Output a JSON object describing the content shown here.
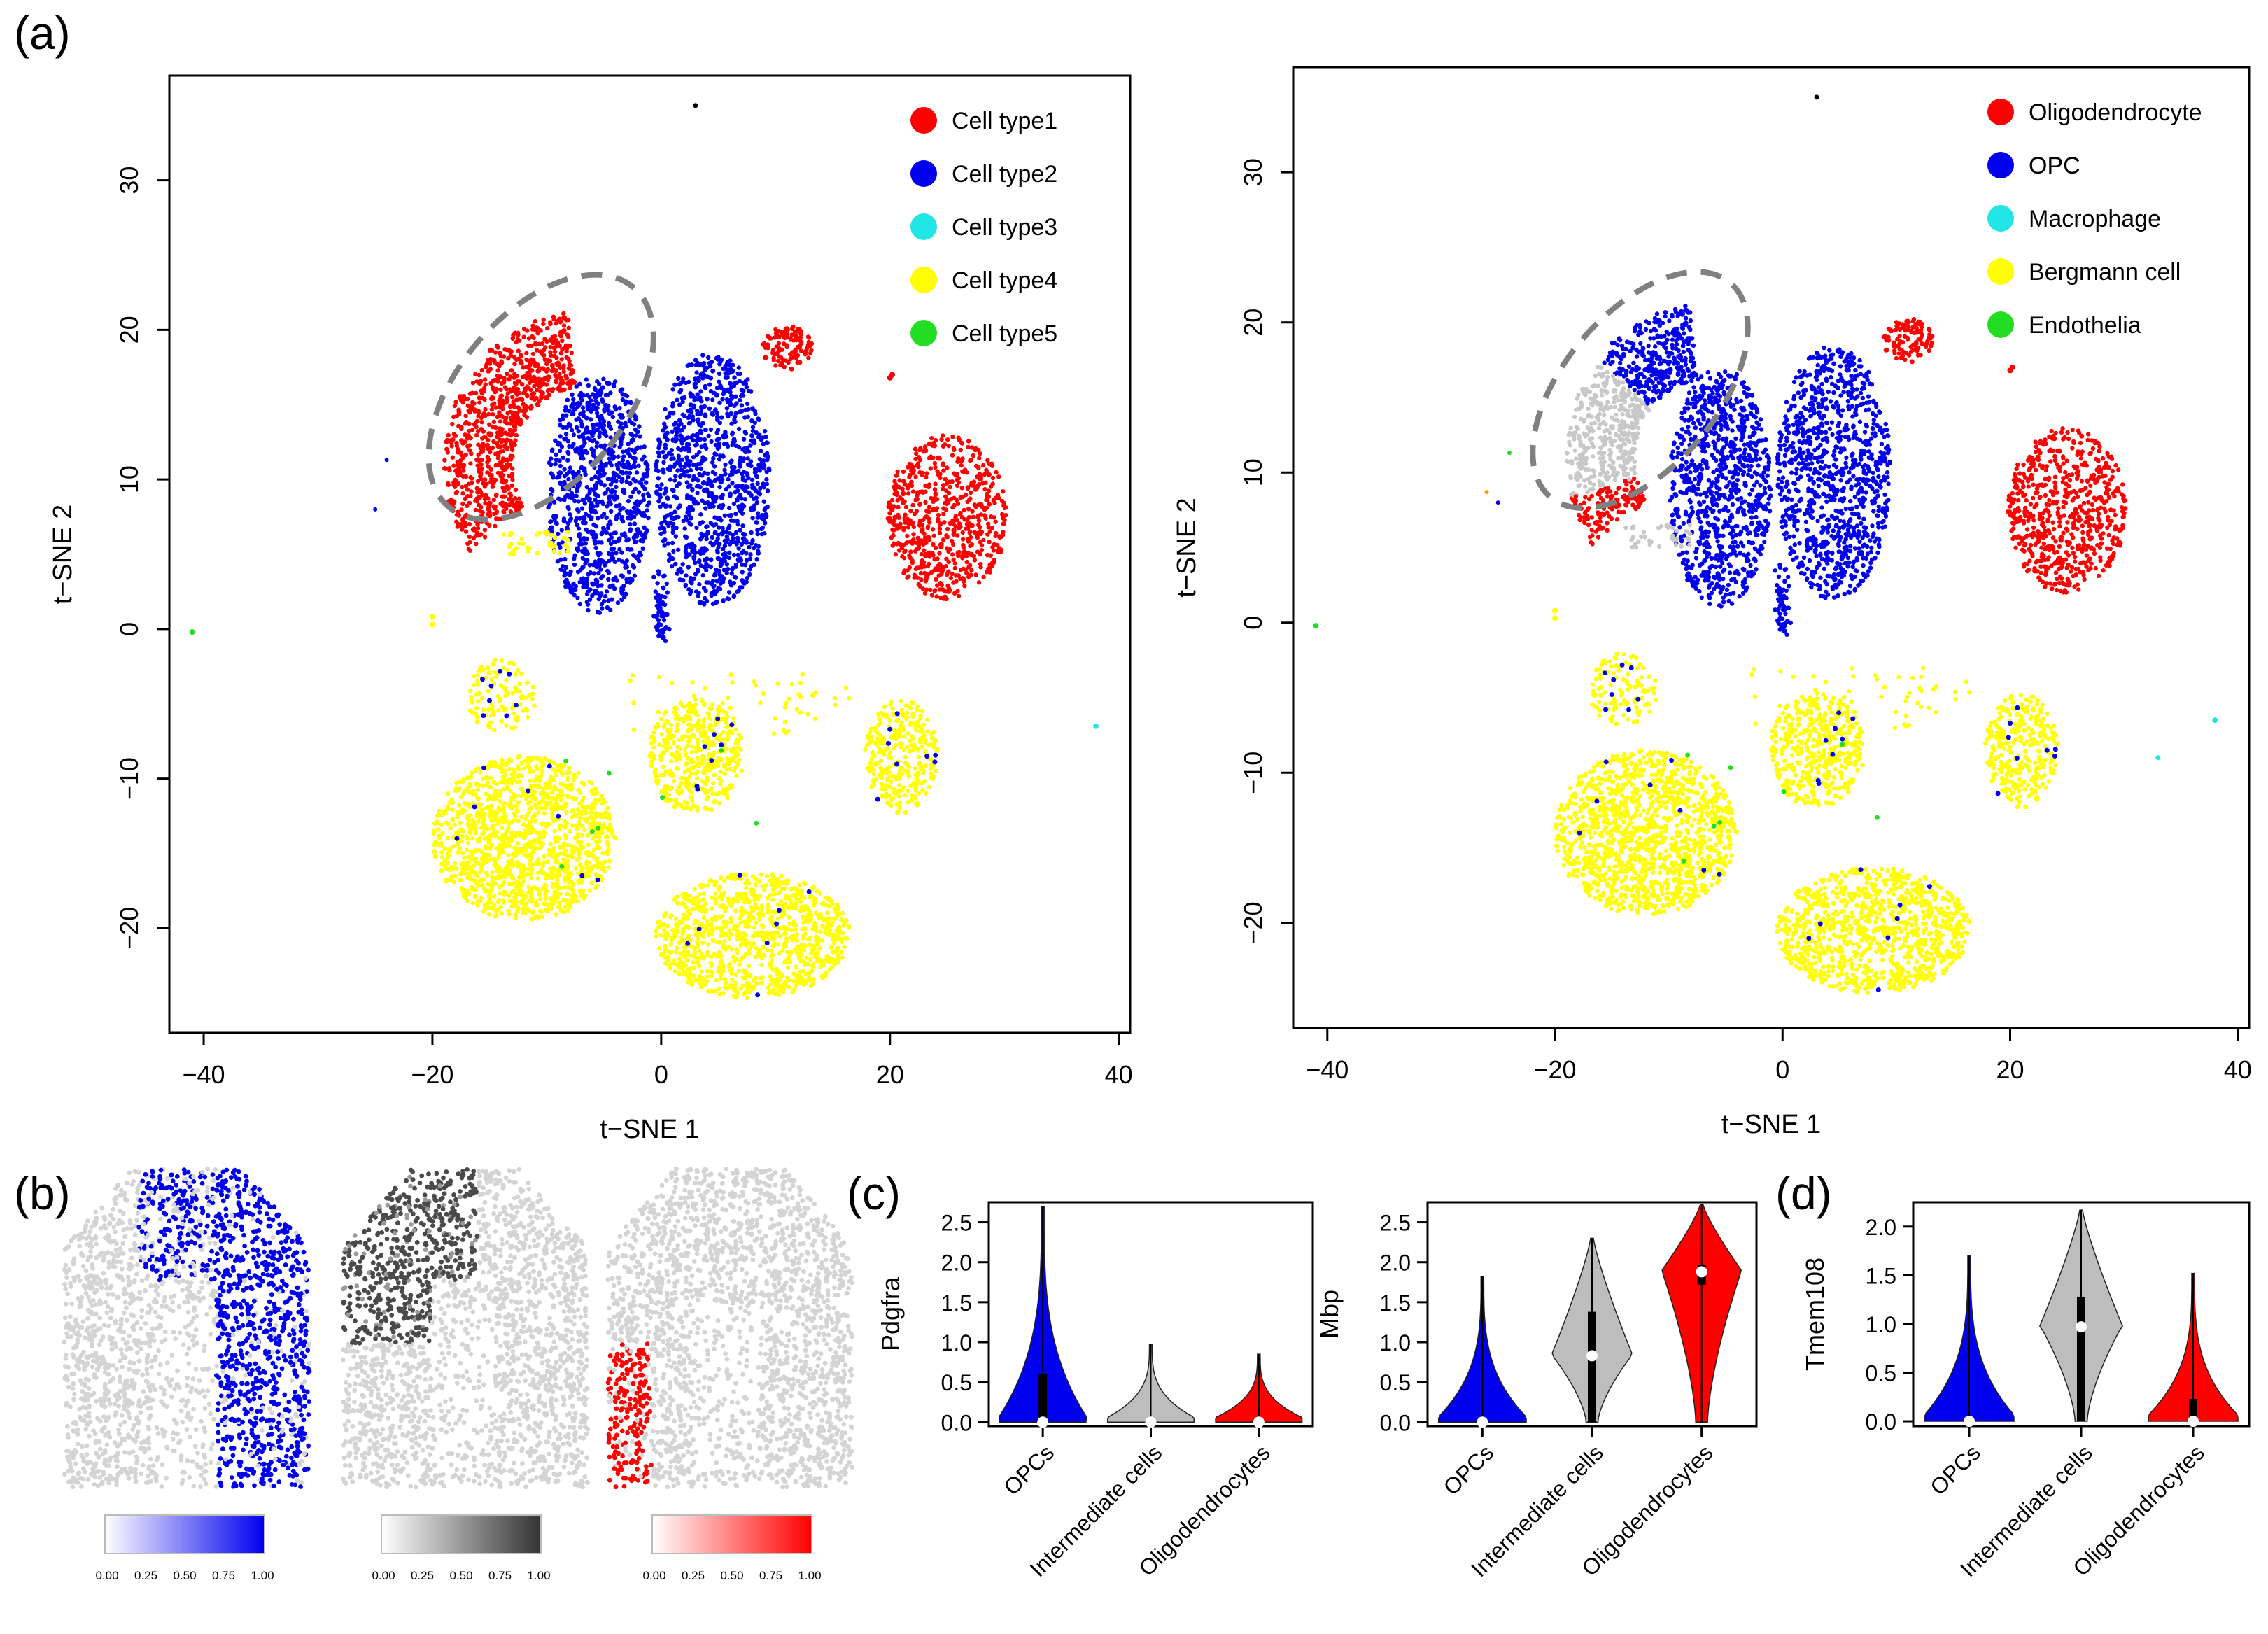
{
  "panels": {
    "a": "(a)",
    "b": "(b)",
    "c": "(c)",
    "d": "(d)"
  },
  "colors": {
    "red": "#ff0000",
    "blue": "#0000ee",
    "cyan": "#22e5e5",
    "yellow": "#ffff00",
    "green": "#22dd22",
    "grey": "#c8c8c8",
    "darkgrey": "#555555"
  },
  "chart_data": [
    {
      "type": "scatter",
      "id": "tsne-left",
      "xlabel": "t−SNE 1",
      "ylabel": "t−SNE 2",
      "xlim": [
        -43,
        41
      ],
      "ylim": [
        -27,
        37
      ],
      "xticks": [
        -40,
        -20,
        0,
        20,
        40
      ],
      "yticks": [
        -20,
        -10,
        0,
        10,
        20,
        30
      ],
      "tick_labels_x": [
        "−40",
        "−20",
        "0",
        "20",
        "40"
      ],
      "tick_labels_y": [
        "−20",
        "−10",
        "0",
        "10",
        "20",
        "30"
      ],
      "legend": [
        {
          "label": "Cell type1",
          "color": "#ff0000"
        },
        {
          "label": "Cell type2",
          "color": "#0000ee"
        },
        {
          "label": "Cell type3",
          "color": "#22e5e5"
        },
        {
          "label": "Cell type4",
          "color": "#ffff00"
        },
        {
          "label": "Cell type5",
          "color": "#22dd22"
        }
      ],
      "clusters": [
        {
          "name": "Cell type1 arc",
          "color": "#ff0000",
          "shape": "arc",
          "cx": -7,
          "cy": 11,
          "r1": 6,
          "r2": 12,
          "a1": 95,
          "a2": 215,
          "n": 900
        },
        {
          "name": "Cell type1 small",
          "color": "#ff0000",
          "shape": "blob",
          "cx": 11,
          "cy": 18.8,
          "rx": 2.2,
          "ry": 1.5,
          "n": 110
        },
        {
          "name": "Cell type1 right",
          "color": "#ff0000",
          "shape": "blob",
          "cx": 25,
          "cy": 7.5,
          "rx": 5.2,
          "ry": 5.5,
          "n": 650
        },
        {
          "name": "Cell type2 left lobe",
          "color": "#0000ee",
          "shape": "blob",
          "cx": -5.5,
          "cy": 9,
          "rx": 4.5,
          "ry": 8,
          "n": 900
        },
        {
          "name": "Cell type2 right lobe",
          "color": "#0000ee",
          "shape": "blob",
          "cx": 4.5,
          "cy": 10,
          "rx": 5,
          "ry": 8.5,
          "n": 1000
        },
        {
          "name": "Cell type4 big",
          "color": "#ffff00",
          "shape": "blob",
          "cx": -12,
          "cy": -14,
          "rx": 8,
          "ry": 5.5,
          "n": 1300
        },
        {
          "name": "Cell type4 lower",
          "color": "#ffff00",
          "shape": "blob",
          "cx": 8,
          "cy": -20.5,
          "rx": 8.5,
          "ry": 4.2,
          "n": 1000
        },
        {
          "name": "Cell type4 mid",
          "color": "#ffff00",
          "shape": "blob",
          "cx": 3,
          "cy": -8.5,
          "rx": 4.2,
          "ry": 3.8,
          "n": 420
        },
        {
          "name": "Cell type4 right",
          "color": "#ffff00",
          "shape": "blob",
          "cx": 21,
          "cy": -8.5,
          "rx": 3.2,
          "ry": 3.8,
          "n": 300
        },
        {
          "name": "Cell type4 upper",
          "color": "#ffff00",
          "shape": "blob",
          "cx": -14,
          "cy": -4.5,
          "rx": 3,
          "ry": 2.5,
          "n": 110
        }
      ],
      "annotation": "dashed ellipse around Cell type1 arc"
    },
    {
      "type": "scatter",
      "id": "tsne-right",
      "xlabel": "t−SNE 1",
      "ylabel": "t−SNE 2",
      "xlim": [
        -43,
        41
      ],
      "ylim": [
        -27,
        37
      ],
      "xticks": [
        -40,
        -20,
        0,
        20,
        40
      ],
      "yticks": [
        -20,
        -10,
        0,
        10,
        20,
        30
      ],
      "tick_labels_x": [
        "−40",
        "−20",
        "0",
        "20",
        "40"
      ],
      "tick_labels_y": [
        "−20",
        "−10",
        "0",
        "10",
        "20",
        "30"
      ],
      "legend": [
        {
          "label": "Oligodendrocyte",
          "color": "#ff0000"
        },
        {
          "label": "OPC",
          "color": "#0000ee"
        },
        {
          "label": "Macrophage",
          "color": "#22e5e5"
        },
        {
          "label": "Bergmann cell",
          "color": "#ffff00"
        },
        {
          "label": "Endothelia",
          "color": "#22dd22"
        }
      ],
      "annotation": "dashed ellipse around intermediate cells (grey)"
    },
    {
      "type": "violin",
      "id": "pdgfra",
      "ylabel": "Pdgfra",
      "ylim": [
        -0.05,
        2.75
      ],
      "yticks": [
        0.0,
        0.5,
        1.0,
        1.5,
        2.0,
        2.5
      ],
      "tick_labels_y": [
        "0.0",
        "0.5",
        "1.0",
        "1.5",
        "2.0",
        "2.5"
      ],
      "categories": [
        "OPCs",
        "Intermediate cells",
        "Oligodendrocytes"
      ],
      "max": [
        2.7,
        0.97,
        0.85
      ],
      "median": [
        0.0,
        0.0,
        0.0
      ],
      "q3": [
        0.6,
        0.0,
        0.0
      ]
    },
    {
      "type": "violin",
      "id": "mbp",
      "ylabel": "Mbp",
      "ylim": [
        -0.05,
        2.75
      ],
      "yticks": [
        0.0,
        0.5,
        1.0,
        1.5,
        2.0,
        2.5
      ],
      "tick_labels_y": [
        "0.0",
        "0.5",
        "1.0",
        "1.5",
        "2.0",
        "2.5"
      ],
      "categories": [
        "OPCs",
        "Intermediate cells",
        "Oligodendrocytes"
      ],
      "max": [
        1.82,
        2.3,
        2.72
      ],
      "median": [
        0.0,
        0.83,
        1.88
      ],
      "q3": [
        0.0,
        1.38,
        1.97
      ],
      "q1": [
        0.0,
        0.0,
        1.72
      ]
    },
    {
      "type": "violin",
      "id": "tmem108",
      "ylabel": "Tmem108",
      "ylim": [
        -0.05,
        2.25
      ],
      "yticks": [
        0.0,
        0.5,
        1.0,
        1.5,
        2.0
      ],
      "tick_labels_y": [
        "0.0",
        "0.5",
        "1.0",
        "1.5",
        "2.0"
      ],
      "categories": [
        "OPCs",
        "Intermediate cells",
        "Oligodendrocytes"
      ],
      "max": [
        1.7,
        2.17,
        1.52
      ],
      "median": [
        0.0,
        0.97,
        0.0
      ],
      "q3": [
        0.0,
        1.28,
        0.23
      ]
    },
    {
      "type": "heatmap",
      "id": "spatial",
      "scales": [
        {
          "color": "#0000ee",
          "ticks": [
            "0.00",
            "0.25",
            "0.50",
            "0.75",
            "1.00"
          ]
        },
        {
          "color": "#333333",
          "ticks": [
            "0.00",
            "0.25",
            "0.50",
            "0.75",
            "1.00"
          ]
        },
        {
          "color": "#ff0000",
          "ticks": [
            "0.00",
            "0.25",
            "0.50",
            "0.75",
            "1.00"
          ]
        }
      ]
    }
  ]
}
